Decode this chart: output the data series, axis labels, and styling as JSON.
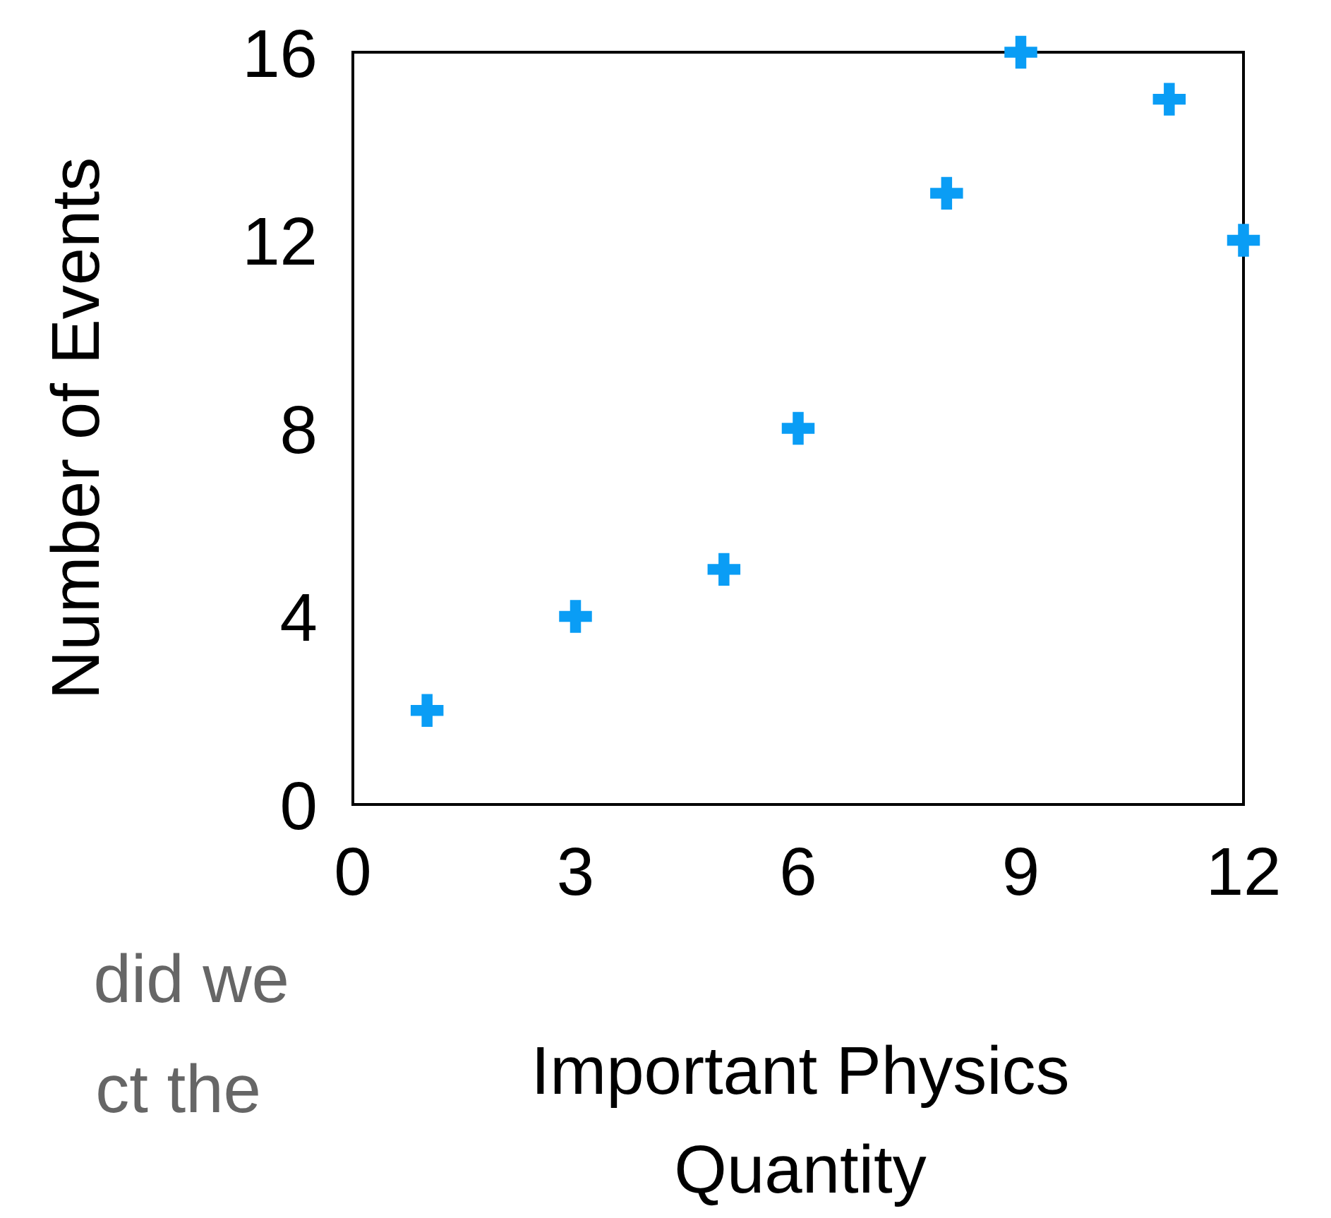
{
  "chart_data": {
    "type": "scatter",
    "xlabel": "Important Physics Quantity",
    "ylabel": "Number of Events",
    "x": [
      1,
      3,
      5,
      6,
      8,
      9,
      11,
      12
    ],
    "series": [
      {
        "color": "#0a9df5",
        "values": [
          2,
          4,
          5,
          8,
          13,
          16,
          15,
          12
        ]
      }
    ],
    "xlim": [
      0,
      12
    ],
    "xticks": [
      0,
      3,
      6,
      9,
      12
    ],
    "ylim": [
      0,
      16
    ],
    "yticks": [
      0,
      4,
      8,
      12,
      16
    ],
    "marker": "cross",
    "annotations": [
      "did we",
      "ct the"
    ]
  }
}
